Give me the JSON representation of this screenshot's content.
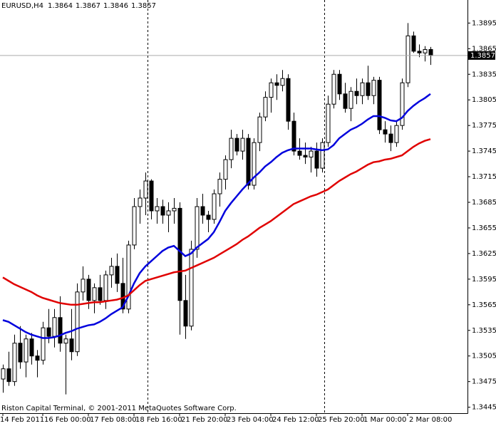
{
  "chart_data": {
    "type": "candlestick",
    "title": "EURUSD,H4",
    "header_prices": [
      1.3864,
      1.3867,
      1.3846,
      1.3857
    ],
    "footer": "Riston Capital Terminal, © 2001-2011 MetaQuotes Software Corp.",
    "last_price": 1.3857,
    "ylim": [
      1.3438,
      1.3922
    ],
    "yticks": [
      1.3445,
      1.3475,
      1.3505,
      1.3535,
      1.3565,
      1.3595,
      1.3625,
      1.3655,
      1.3685,
      1.3715,
      1.3745,
      1.3775,
      1.3805,
      1.3835,
      1.3865,
      1.3895
    ],
    "categories": [
      "14 Feb 2011",
      null,
      null,
      null,
      null,
      null,
      null,
      "16 Feb 00:00",
      null,
      null,
      null,
      null,
      null,
      null,
      null,
      "17 Feb 08:00",
      null,
      null,
      null,
      null,
      null,
      null,
      null,
      "18 Feb 16:00",
      null,
      null,
      null,
      null,
      null,
      null,
      null,
      "21 Feb 20:00",
      null,
      null,
      null,
      null,
      null,
      null,
      null,
      "23 Feb 04:00",
      null,
      null,
      null,
      null,
      null,
      null,
      null,
      "24 Feb 12:00",
      null,
      null,
      null,
      null,
      null,
      null,
      null,
      "25 Feb 20:00",
      null,
      null,
      null,
      null,
      null,
      null,
      null,
      "1 Mar 00:00",
      null,
      null,
      null,
      null,
      null,
      null,
      null,
      "2 Mar 08:00",
      null,
      null,
      null,
      null
    ],
    "open": [
      1.3478,
      1.349,
      1.3475,
      1.352,
      1.3498,
      1.3525,
      1.3505,
      1.35,
      1.3538,
      1.3528,
      1.355,
      1.352,
      1.3525,
      1.351,
      1.358,
      1.3595,
      1.357,
      1.3585,
      1.357,
      1.36,
      1.361,
      1.359,
      1.356,
      1.3635,
      1.368,
      1.369,
      1.371,
      1.3675,
      1.368,
      1.367,
      1.3675,
      1.3678,
      1.357,
      1.354,
      1.363,
      1.368,
      1.367,
      1.3665,
      1.3695,
      1.3712,
      1.3735,
      1.376,
      1.3745,
      1.376,
      1.3705,
      1.3755,
      1.3785,
      1.3808,
      1.3825,
      1.3822,
      1.383,
      1.378,
      1.3745,
      1.374,
      1.3738,
      1.3745,
      1.3725,
      1.3755,
      1.38,
      1.3835,
      1.3812,
      1.3795,
      1.3815,
      1.381,
      1.3825,
      1.381,
      1.3828,
      1.377,
      1.3765,
      1.3755,
      1.3775,
      1.3825,
      1.388,
      1.3862,
      1.386,
      1.3864
    ],
    "high": [
      1.3495,
      1.351,
      1.353,
      1.354,
      1.353,
      1.3532,
      1.3512,
      1.3545,
      1.356,
      1.356,
      1.3575,
      1.353,
      1.356,
      1.359,
      1.361,
      1.36,
      1.359,
      1.36,
      1.3605,
      1.362,
      1.3625,
      1.362,
      1.364,
      1.369,
      1.37,
      1.372,
      1.3712,
      1.369,
      1.3688,
      1.3685,
      1.369,
      1.3685,
      1.36,
      1.364,
      1.369,
      1.3695,
      1.3675,
      1.37,
      1.372,
      1.374,
      1.377,
      1.3765,
      1.377,
      1.3765,
      1.376,
      1.379,
      1.3815,
      1.383,
      1.3835,
      1.384,
      1.3835,
      1.379,
      1.376,
      1.3755,
      1.375,
      1.3755,
      1.376,
      1.381,
      1.384,
      1.384,
      1.3825,
      1.382,
      1.383,
      1.383,
      1.3845,
      1.3832,
      1.3832,
      1.378,
      1.3775,
      1.378,
      1.383,
      1.3895,
      1.3885,
      1.387,
      1.3868,
      1.3867
    ],
    "low": [
      1.3462,
      1.347,
      1.347,
      1.349,
      1.348,
      1.3495,
      1.348,
      1.3495,
      1.352,
      1.3515,
      1.351,
      1.346,
      1.35,
      1.3505,
      1.357,
      1.356,
      1.3555,
      1.3565,
      1.356,
      1.3585,
      1.358,
      1.3555,
      1.3555,
      1.363,
      1.366,
      1.367,
      1.3665,
      1.366,
      1.366,
      1.365,
      1.366,
      1.353,
      1.3525,
      1.3535,
      1.362,
      1.366,
      1.365,
      1.366,
      1.368,
      1.37,
      1.3725,
      1.374,
      1.3735,
      1.37,
      1.37,
      1.3745,
      1.378,
      1.379,
      1.3805,
      1.3815,
      1.377,
      1.374,
      1.3735,
      1.373,
      1.372,
      1.3715,
      1.372,
      1.375,
      1.3795,
      1.3805,
      1.379,
      1.378,
      1.38,
      1.38,
      1.3805,
      1.38,
      1.3765,
      1.3755,
      1.3745,
      1.375,
      1.377,
      1.382,
      1.386,
      1.3855,
      1.385,
      1.3846
    ],
    "close": [
      1.349,
      1.3475,
      1.352,
      1.3498,
      1.3525,
      1.3505,
      1.35,
      1.3538,
      1.3528,
      1.355,
      1.352,
      1.3525,
      1.351,
      1.358,
      1.3595,
      1.357,
      1.3585,
      1.357,
      1.36,
      1.361,
      1.359,
      1.356,
      1.3635,
      1.368,
      1.369,
      1.371,
      1.3675,
      1.368,
      1.367,
      1.3675,
      1.3678,
      1.357,
      1.354,
      1.363,
      1.368,
      1.367,
      1.3665,
      1.3695,
      1.3712,
      1.3735,
      1.376,
      1.3745,
      1.376,
      1.3705,
      1.3755,
      1.3785,
      1.3808,
      1.3825,
      1.3822,
      1.383,
      1.378,
      1.3745,
      1.374,
      1.3738,
      1.3745,
      1.3725,
      1.3755,
      1.38,
      1.3835,
      1.3812,
      1.3795,
      1.3815,
      1.381,
      1.3825,
      1.381,
      1.3828,
      1.377,
      1.3765,
      1.3755,
      1.3775,
      1.3825,
      1.388,
      1.3862,
      1.386,
      1.3864,
      1.3857
    ],
    "series": [
      {
        "color": "#0000dd",
        "values": [
          1.3547,
          1.3545,
          1.3541,
          1.3537,
          1.3533,
          1.353,
          1.3528,
          1.3526,
          1.3526,
          1.3527,
          1.3529,
          1.3532,
          1.3534,
          1.3537,
          1.3539,
          1.3541,
          1.3542,
          1.3545,
          1.3549,
          1.3554,
          1.3558,
          1.3562,
          1.3575,
          1.359,
          1.3602,
          1.361,
          1.3616,
          1.3622,
          1.3628,
          1.3632,
          1.3634,
          1.3628,
          1.3622,
          1.3625,
          1.3632,
          1.3637,
          1.3642,
          1.365,
          1.3662,
          1.3675,
          1.3684,
          1.3692,
          1.37,
          1.3707,
          1.3714,
          1.372,
          1.3727,
          1.3732,
          1.3738,
          1.3743,
          1.3746,
          1.3748,
          1.3748,
          1.3748,
          1.3748,
          1.3747,
          1.3746,
          1.3747,
          1.3752,
          1.376,
          1.3765,
          1.377,
          1.3773,
          1.3777,
          1.3782,
          1.3786,
          1.3786,
          1.3784,
          1.3781,
          1.378,
          1.3784,
          1.3792,
          1.3798,
          1.3803,
          1.3807,
          1.3812
        ]
      },
      {
        "color": "#e00000",
        "values": [
          1.3597,
          1.3593,
          1.3589,
          1.3586,
          1.3583,
          1.358,
          1.3576,
          1.3573,
          1.3571,
          1.3569,
          1.3567,
          1.3566,
          1.3565,
          1.3565,
          1.3566,
          1.3567,
          1.3568,
          1.3568,
          1.3569,
          1.357,
          1.3571,
          1.3573,
          1.3576,
          1.3582,
          1.3588,
          1.3593,
          1.3595,
          1.3597,
          1.3599,
          1.3601,
          1.3603,
          1.3604,
          1.3605,
          1.3608,
          1.3611,
          1.3614,
          1.3617,
          1.362,
          1.3624,
          1.3628,
          1.3632,
          1.3636,
          1.3641,
          1.3645,
          1.365,
          1.3655,
          1.3659,
          1.3663,
          1.3668,
          1.3673,
          1.3678,
          1.3683,
          1.3686,
          1.3689,
          1.3692,
          1.3694,
          1.3697,
          1.37,
          1.3705,
          1.371,
          1.3714,
          1.3718,
          1.3721,
          1.3725,
          1.3729,
          1.3732,
          1.3733,
          1.3735,
          1.3736,
          1.3738,
          1.374,
          1.3745,
          1.375,
          1.3754,
          1.3757,
          1.3759
        ]
      }
    ]
  }
}
